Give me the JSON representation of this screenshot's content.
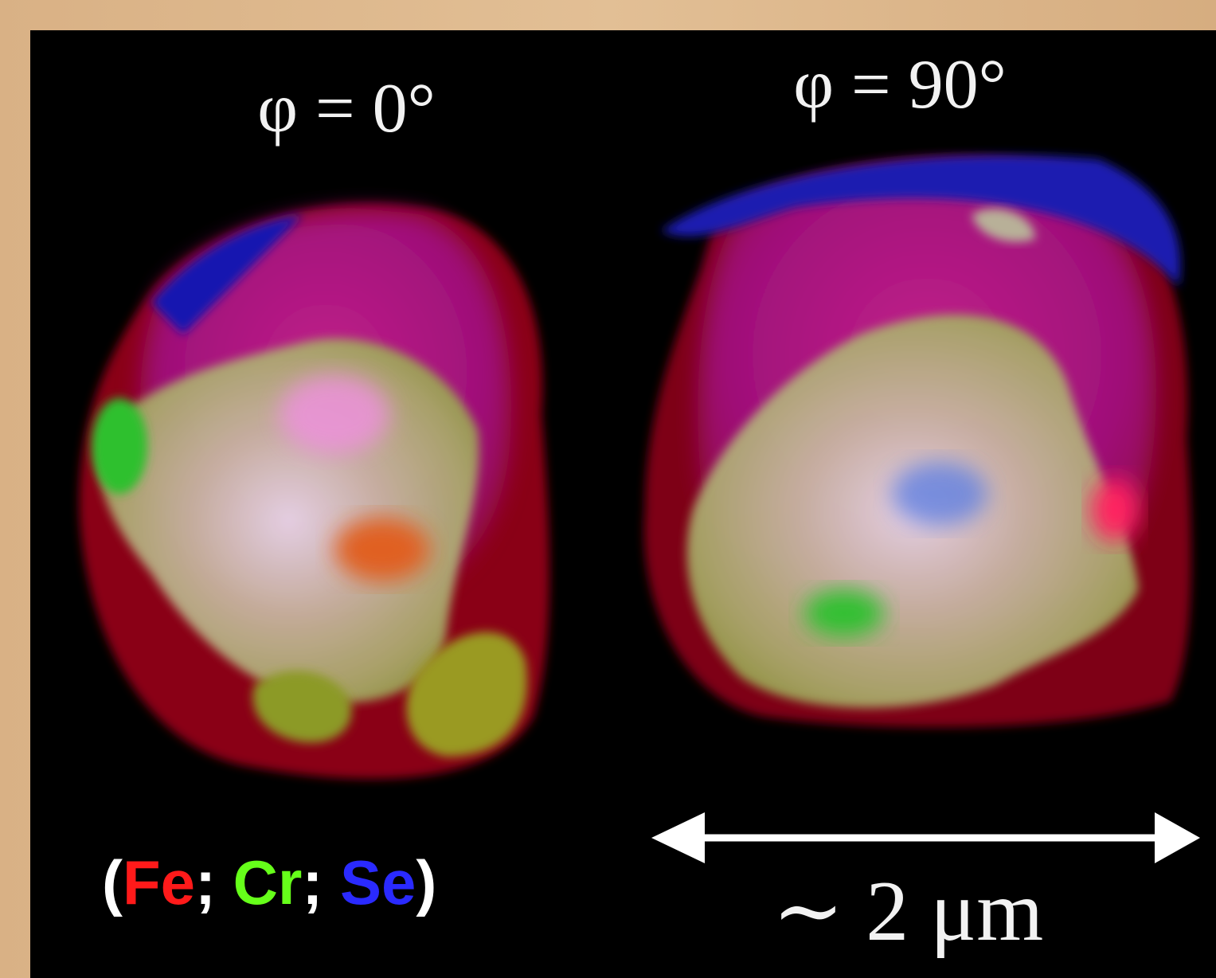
{
  "panels": [
    {
      "label": "φ = 0°"
    },
    {
      "label": "φ = 90°"
    }
  ],
  "scale_bar": {
    "label": "∼ 2 μm"
  },
  "legend": {
    "open": "(",
    "separator": ";",
    "close": ")",
    "items": [
      {
        "text": "Fe",
        "color": "#ff1a1a"
      },
      {
        "text": "Cr",
        "color": "#66ff1a"
      },
      {
        "text": "Se",
        "color": "#2a2aff"
      }
    ]
  }
}
